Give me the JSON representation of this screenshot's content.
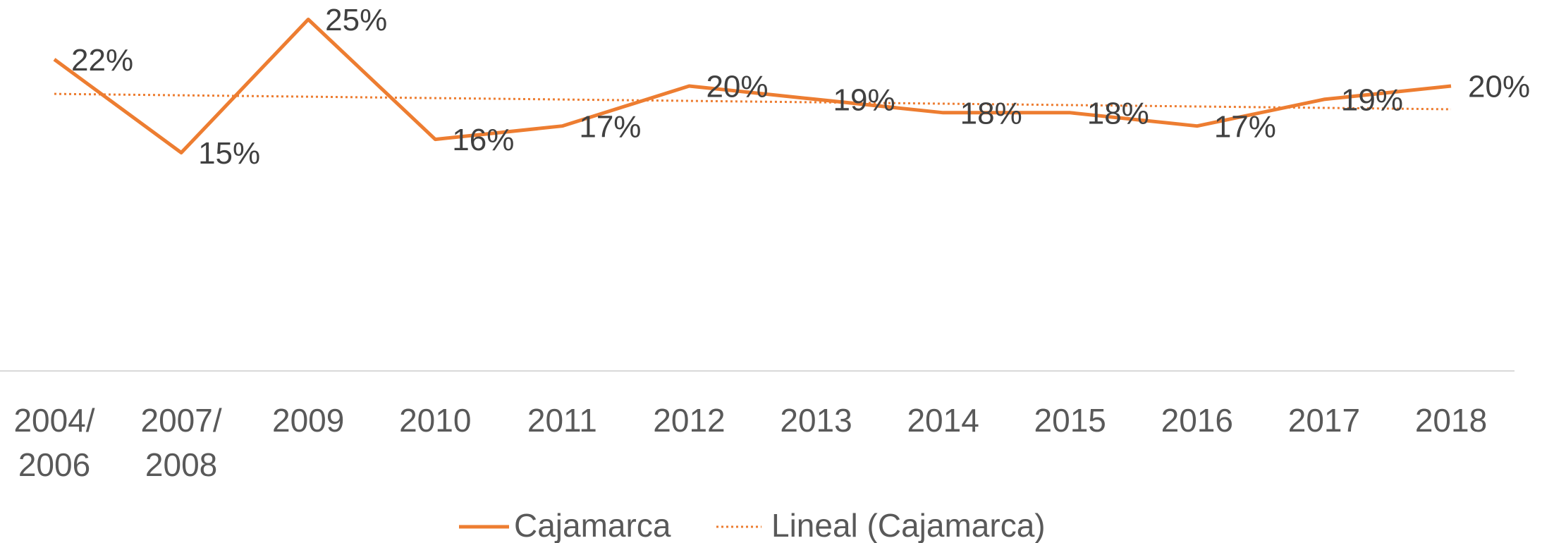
{
  "chart_data": {
    "type": "line",
    "categories": [
      "2004/ 2006",
      "2007/ 2008",
      "2009",
      "2010",
      "2011",
      "2012",
      "2013",
      "2014",
      "2015",
      "2016",
      "2017",
      "2018"
    ],
    "series": [
      {
        "name": "Cajamarca",
        "color": "#ED7D31",
        "values": [
          22,
          15,
          25,
          16,
          17,
          20,
          19,
          18,
          18,
          17,
          19,
          20
        ],
        "value_labels": [
          "22%",
          "15%",
          "25%",
          "16%",
          "17%",
          "20%",
          "19%",
          "18%",
          "18%",
          "17%",
          "19%",
          "20%"
        ]
      }
    ],
    "trendline": {
      "name": "Lineal (Cajamarca)",
      "type": "linear",
      "color": "#ED7D31"
    },
    "legend": "bottom"
  }
}
